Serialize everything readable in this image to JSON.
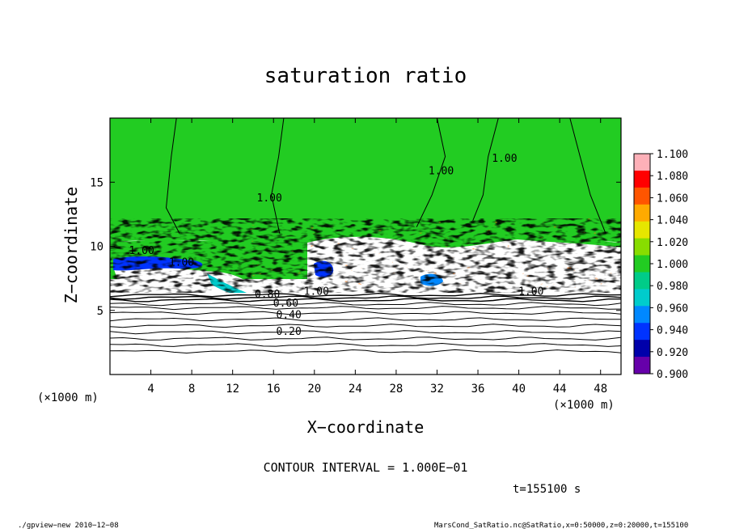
{
  "chart_data": {
    "type": "heatmap",
    "title": "saturation ratio",
    "xlabel": "X−coordinate",
    "ylabel": "Z−coordinate",
    "x_unit_label": "(×1000 m)",
    "y_unit_label": "(×1000 m)",
    "xlim": [
      0,
      50
    ],
    "ylim": [
      0,
      20
    ],
    "x_ticks": [
      4,
      8,
      12,
      16,
      20,
      24,
      28,
      32,
      36,
      40,
      44,
      48
    ],
    "y_ticks": [
      5,
      10,
      15
    ],
    "colorbar": {
      "levels": [
        "1.100",
        "1.080",
        "1.060",
        "1.040",
        "1.020",
        "1.000",
        "0.980",
        "0.960",
        "0.940",
        "0.920",
        "0.900"
      ],
      "colors": [
        "#fdb0b8",
        "#ff0000",
        "#ff5500",
        "#ffaa00",
        "#e6e600",
        "#88dd00",
        "#22cc22",
        "#00cc88",
        "#00cccc",
        "#0088ff",
        "#0033ff",
        "#0000aa",
        "#6600aa"
      ]
    },
    "contour_levels": [
      0.1,
      0.2,
      0.3,
      0.4,
      0.5,
      0.6,
      0.7,
      0.8,
      0.9,
      1.0
    ],
    "contour_labels": [
      {
        "text": "0.20",
        "x": 17.5,
        "z": 3.1
      },
      {
        "text": "0.40",
        "x": 17.5,
        "z": 4.4
      },
      {
        "text": "0.60",
        "x": 17.2,
        "z": 5.3
      },
      {
        "text": "0.80",
        "x": 15.4,
        "z": 6.0
      },
      {
        "text": "1.00",
        "x": 20.2,
        "z": 6.2
      },
      {
        "text": "1.00",
        "x": 41.2,
        "z": 6.2
      },
      {
        "text": "1.00",
        "x": 3.1,
        "z": 9.4
      },
      {
        "text": "1.00",
        "x": 7.0,
        "z": 8.5
      },
      {
        "text": "1.00",
        "x": 15.6,
        "z": 13.5
      },
      {
        "text": "1.00",
        "x": 32.4,
        "z": 15.6
      },
      {
        "text": "1.00",
        "x": 38.6,
        "z": 16.6
      }
    ],
    "contour_interval_text": "CONTOUR INTERVAL = 1.000E−01",
    "time_text": "t=155100 s"
  },
  "footer": {
    "left": "./gpview−new   2010−12−08",
    "right": "MarsCond_SatRatio.nc@SatRatio,x=0:50000,z=0:20000,t=155100"
  }
}
